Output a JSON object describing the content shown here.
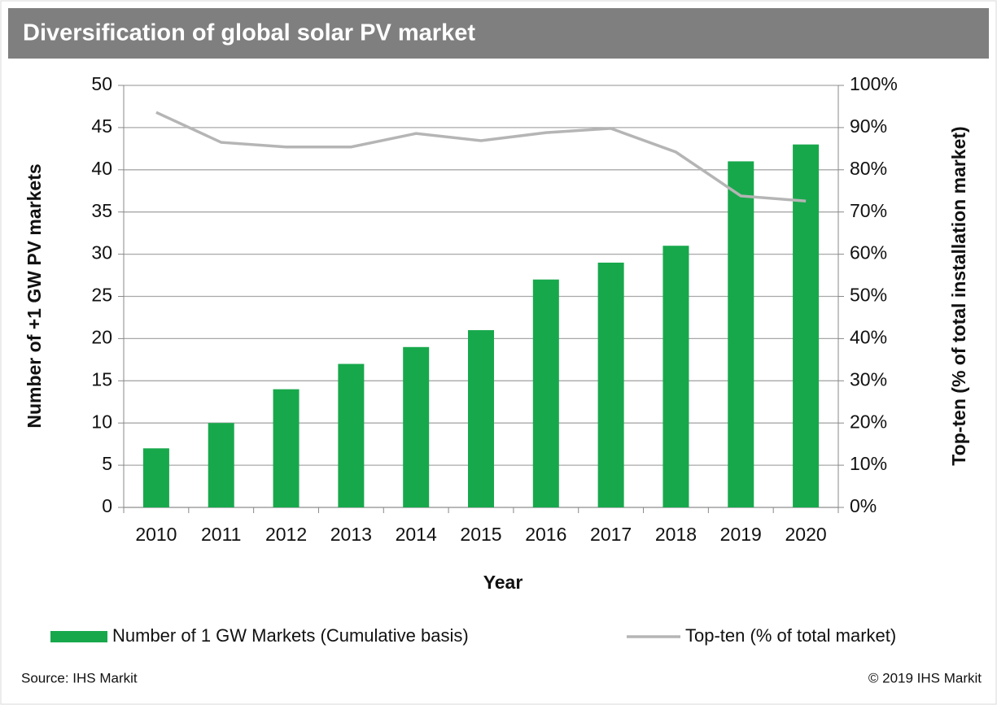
{
  "chart_data": {
    "type": "bar",
    "title": "Diversification of global solar PV market",
    "x_label": "Year",
    "y_label": "Number of +1 GW PV markets",
    "y2_label": "Top-ten (% of total installation  market)",
    "categories": [
      "2010",
      "2011",
      "2012",
      "2013",
      "2014",
      "2015",
      "2016",
      "2017",
      "2018",
      "2019",
      "2020"
    ],
    "series": [
      {
        "name": "Number of 1 GW Markets (Cumulative basis)",
        "type": "bar",
        "color": "#18a84c",
        "values": [
          7,
          10,
          14,
          17,
          19,
          21,
          27,
          29,
          31,
          41,
          43
        ]
      },
      {
        "name": "Top-ten (% of total market)",
        "type": "line",
        "axis": "y2",
        "color": "#b5b5b5",
        "values": [
          93.6,
          86.5,
          85.4,
          85.4,
          88.6,
          86.9,
          88.8,
          89.8,
          84.2,
          73.8,
          72.6
        ]
      }
    ],
    "ylim": [
      0,
      50
    ],
    "yticks": [
      0,
      5,
      10,
      15,
      20,
      25,
      30,
      35,
      40,
      45,
      50
    ],
    "y2lim": [
      0,
      100
    ],
    "y2ticks": [
      {
        "value": 0,
        "label": "0%"
      },
      {
        "value": 10,
        "label": "10%"
      },
      {
        "value": 20,
        "label": "20%"
      },
      {
        "value": 30,
        "label": "30%"
      },
      {
        "value": 40,
        "label": "40%"
      },
      {
        "value": 50,
        "label": "50%"
      },
      {
        "value": 60,
        "label": "60%"
      },
      {
        "value": 70,
        "label": "70%"
      },
      {
        "value": 80,
        "label": "80%"
      },
      {
        "value": 90,
        "label": "90%"
      },
      {
        "value": 100,
        "label": "100%"
      }
    ],
    "grid": true,
    "legend": "bottom",
    "source": "Source: IHS Markit",
    "copyright": "© 2019 IHS Markit"
  }
}
